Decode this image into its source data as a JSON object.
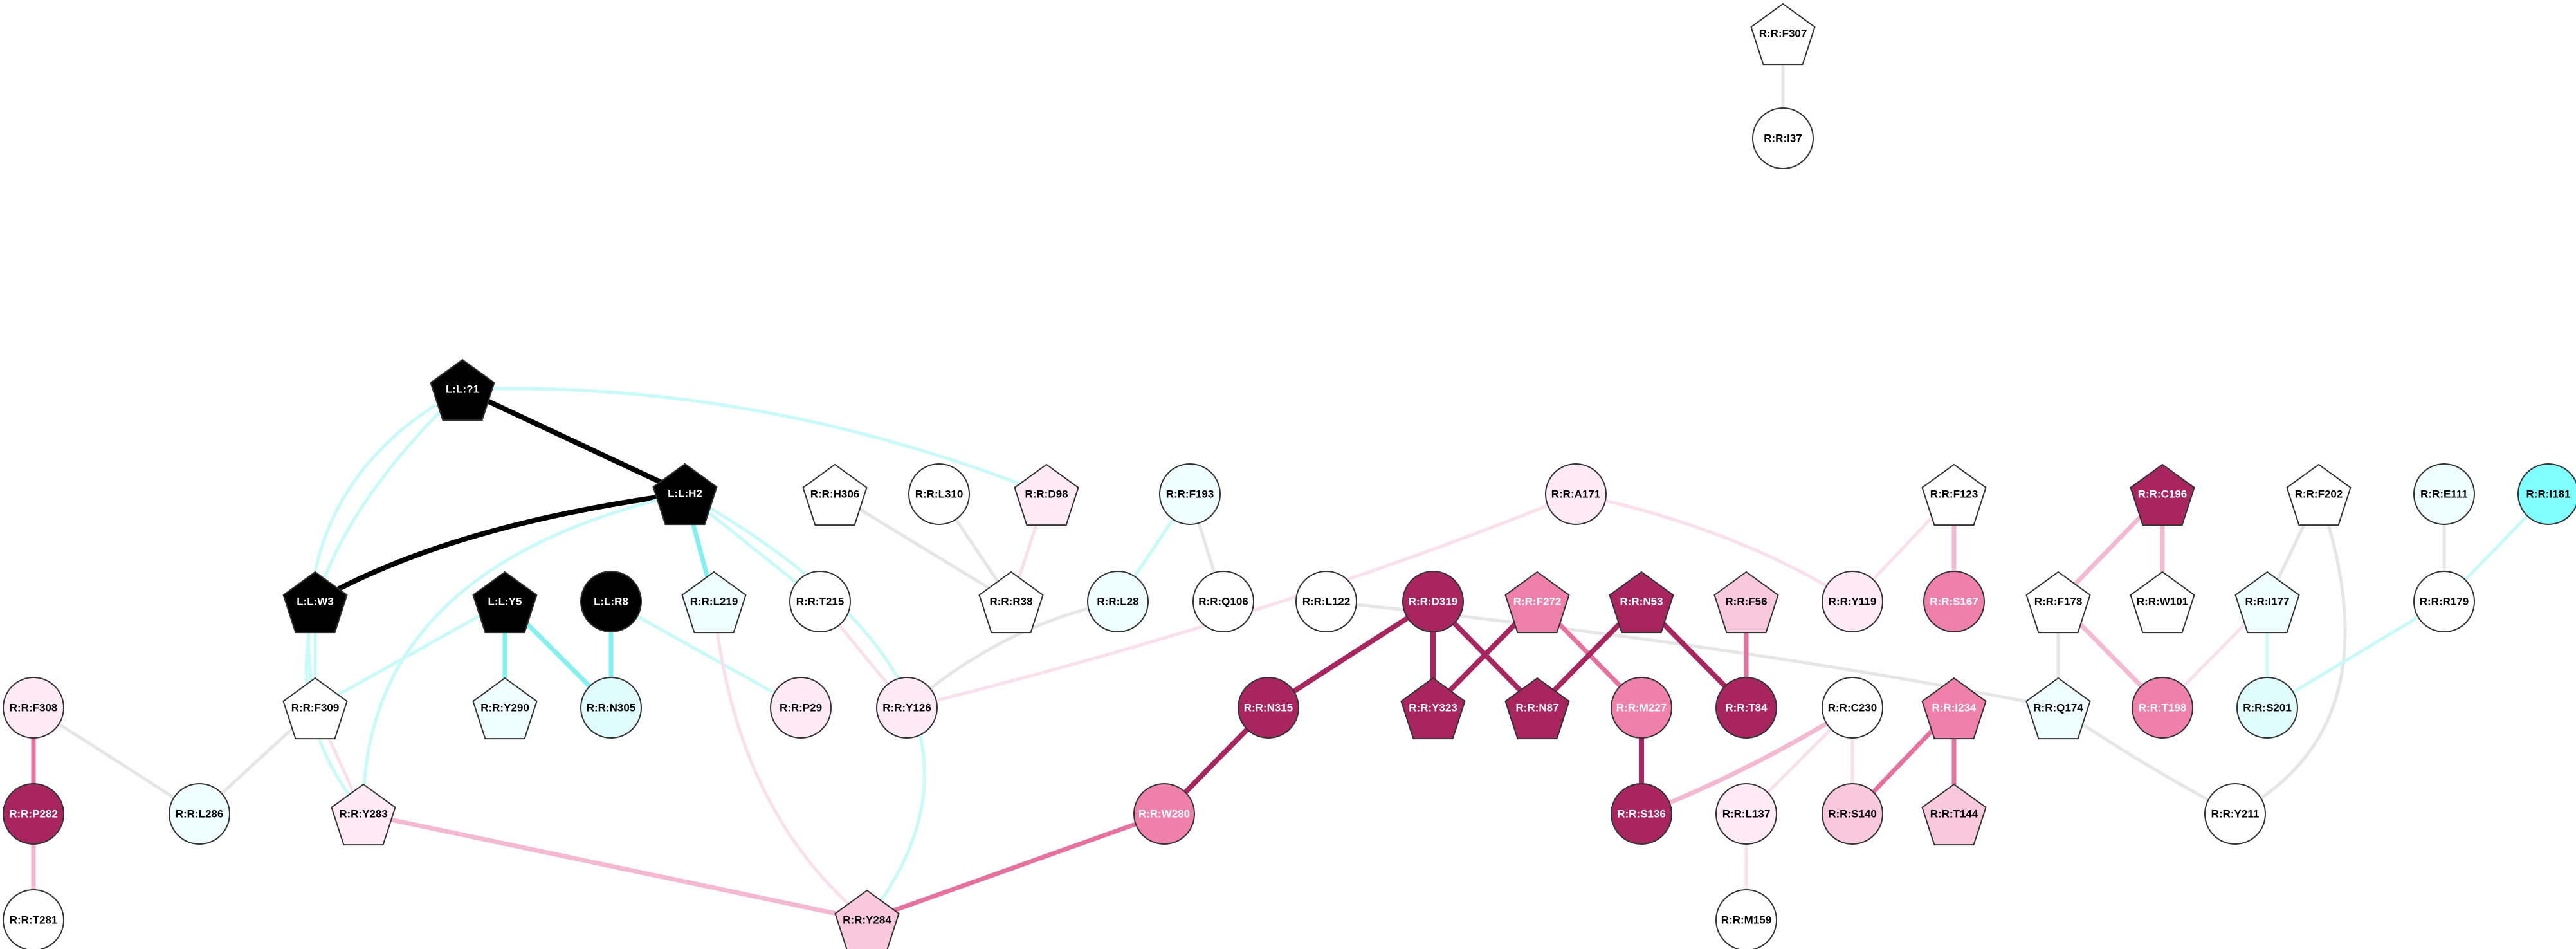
{
  "palette": {
    "ligand": "#000000",
    "white": "#ffffff",
    "lightest_cyan": "#eefdfd",
    "light_cyan": "#dffbfb",
    "bright_cyan": "#80ffff",
    "lightest_pink": "#fdeaf2",
    "light_pink": "#f8c8dd",
    "mid_pink": "#ef7fab",
    "dark_magenta": "#a8255f",
    "edge_grey": "#e6e6e6",
    "edge_cyan_pale": "#c8fafa",
    "edge_cyan": "#80f0f0",
    "edge_pink_pale": "#fae0ea",
    "edge_pink": "#f4b8d0",
    "edge_pink_mid": "#e8709e",
    "edge_magenta": "#a8255f",
    "edge_black": "#000000"
  },
  "network": {
    "nodes": [
      {
        "id": "L:L:?1",
        "shape": "pentagon",
        "color": "ligand",
        "text": "light"
      },
      {
        "id": "L:L:H2",
        "shape": "pentagon",
        "color": "ligand",
        "text": "light"
      },
      {
        "id": "L:L:W3",
        "shape": "pentagon",
        "color": "ligand",
        "text": "light"
      },
      {
        "id": "L:L:Y5",
        "shape": "pentagon",
        "color": "ligand",
        "text": "light"
      },
      {
        "id": "L:L:R8",
        "shape": "circle",
        "color": "ligand",
        "text": "light"
      },
      {
        "id": "R:R:F307",
        "shape": "pentagon",
        "color": "white"
      },
      {
        "id": "R:R:I37",
        "shape": "circle",
        "color": "white"
      },
      {
        "id": "R:R:H306",
        "shape": "pentagon",
        "color": "white"
      },
      {
        "id": "R:R:L310",
        "shape": "circle",
        "color": "white"
      },
      {
        "id": "R:R:D98",
        "shape": "pentagon",
        "color": "lightest_pink"
      },
      {
        "id": "R:R:F193",
        "shape": "circle",
        "color": "lightest_cyan"
      },
      {
        "id": "R:R:A171",
        "shape": "circle",
        "color": "lightest_pink"
      },
      {
        "id": "R:R:F123",
        "shape": "pentagon",
        "color": "white"
      },
      {
        "id": "R:R:C196",
        "shape": "pentagon",
        "color": "dark_magenta",
        "text": "light"
      },
      {
        "id": "R:R:F202",
        "shape": "pentagon",
        "color": "white"
      },
      {
        "id": "R:R:E111",
        "shape": "circle",
        "color": "lightest_cyan"
      },
      {
        "id": "R:R:I181",
        "shape": "circle",
        "color": "bright_cyan"
      },
      {
        "id": "R:R:L219",
        "shape": "pentagon",
        "color": "lightest_cyan"
      },
      {
        "id": "R:R:T215",
        "shape": "circle",
        "color": "white"
      },
      {
        "id": "R:R:R38",
        "shape": "pentagon",
        "color": "white"
      },
      {
        "id": "R:R:L28",
        "shape": "circle",
        "color": "lightest_cyan"
      },
      {
        "id": "R:R:Q106",
        "shape": "circle",
        "color": "white"
      },
      {
        "id": "R:R:L122",
        "shape": "circle",
        "color": "white"
      },
      {
        "id": "R:R:D319",
        "shape": "circle",
        "color": "dark_magenta",
        "text": "light"
      },
      {
        "id": "R:R:F272",
        "shape": "pentagon",
        "color": "mid_pink",
        "text": "light"
      },
      {
        "id": "R:R:N53",
        "shape": "pentagon",
        "color": "dark_magenta",
        "text": "light"
      },
      {
        "id": "R:R:F56",
        "shape": "pentagon",
        "color": "light_pink"
      },
      {
        "id": "R:R:Y119",
        "shape": "circle",
        "color": "lightest_pink"
      },
      {
        "id": "R:R:S167",
        "shape": "circle",
        "color": "mid_pink",
        "text": "light"
      },
      {
        "id": "R:R:F178",
        "shape": "pentagon",
        "color": "white"
      },
      {
        "id": "R:R:W101",
        "shape": "pentagon",
        "color": "white"
      },
      {
        "id": "R:R:I177",
        "shape": "pentagon",
        "color": "lightest_cyan"
      },
      {
        "id": "R:R:R179",
        "shape": "circle",
        "color": "white"
      },
      {
        "id": "R:R:F308",
        "shape": "circle",
        "color": "lightest_pink"
      },
      {
        "id": "R:R:F309",
        "shape": "pentagon",
        "color": "white"
      },
      {
        "id": "R:R:Y290",
        "shape": "pentagon",
        "color": "lightest_cyan"
      },
      {
        "id": "R:R:N305",
        "shape": "circle",
        "color": "light_cyan"
      },
      {
        "id": "R:R:P29",
        "shape": "circle",
        "color": "lightest_pink"
      },
      {
        "id": "R:R:Y126",
        "shape": "circle",
        "color": "lightest_pink"
      },
      {
        "id": "R:R:N315",
        "shape": "circle",
        "color": "dark_magenta",
        "text": "light"
      },
      {
        "id": "R:R:Y323",
        "shape": "pentagon",
        "color": "dark_magenta",
        "text": "light"
      },
      {
        "id": "R:R:N87",
        "shape": "pentagon",
        "color": "dark_magenta",
        "text": "light"
      },
      {
        "id": "R:R:M227",
        "shape": "circle",
        "color": "mid_pink",
        "text": "light"
      },
      {
        "id": "R:R:T84",
        "shape": "circle",
        "color": "dark_magenta",
        "text": "light"
      },
      {
        "id": "R:R:C230",
        "shape": "circle",
        "color": "white"
      },
      {
        "id": "R:R:I234",
        "shape": "pentagon",
        "color": "mid_pink",
        "text": "light"
      },
      {
        "id": "R:R:Q174",
        "shape": "pentagon",
        "color": "lightest_cyan"
      },
      {
        "id": "R:R:T198",
        "shape": "circle",
        "color": "mid_pink",
        "text": "light"
      },
      {
        "id": "R:R:S201",
        "shape": "circle",
        "color": "light_cyan"
      },
      {
        "id": "R:R:P282",
        "shape": "circle",
        "color": "dark_magenta",
        "text": "light"
      },
      {
        "id": "R:R:L286",
        "shape": "circle",
        "color": "lightest_cyan"
      },
      {
        "id": "R:R:Y283",
        "shape": "pentagon",
        "color": "lightest_pink"
      },
      {
        "id": "R:R:W280",
        "shape": "circle",
        "color": "mid_pink",
        "text": "light"
      },
      {
        "id": "R:R:S136",
        "shape": "circle",
        "color": "dark_magenta",
        "text": "light"
      },
      {
        "id": "R:R:L137",
        "shape": "circle",
        "color": "lightest_pink"
      },
      {
        "id": "R:R:S140",
        "shape": "circle",
        "color": "light_pink"
      },
      {
        "id": "R:R:T144",
        "shape": "pentagon",
        "color": "light_pink"
      },
      {
        "id": "R:R:Y211",
        "shape": "circle",
        "color": "white"
      },
      {
        "id": "R:R:T281",
        "shape": "circle",
        "color": "white"
      },
      {
        "id": "R:R:Y284",
        "shape": "pentagon",
        "color": "light_pink"
      },
      {
        "id": "R:R:M159",
        "shape": "circle",
        "color": "white"
      }
    ],
    "edges": [
      {
        "source": "R:R:F307",
        "target": "R:R:I37",
        "color": "edge_grey",
        "weight": "thin"
      },
      {
        "source": "L:L:?1",
        "target": "L:L:H2",
        "color": "edge_black",
        "weight": "heavy"
      },
      {
        "source": "L:L:H2",
        "target": "L:L:W3",
        "color": "edge_black",
        "weight": "heavy"
      },
      {
        "source": "L:L:?1",
        "target": "R:R:D98",
        "color": "edge_cyan_pale",
        "weight": "thin"
      },
      {
        "source": "L:L:?1",
        "target": "R:R:F309",
        "color": "edge_cyan_pale",
        "weight": "thin"
      },
      {
        "source": "L:L:?1",
        "target": "R:R:Y283",
        "color": "edge_cyan_pale",
        "weight": "thin"
      },
      {
        "source": "L:L:H2",
        "target": "R:R:L219",
        "color": "edge_cyan",
        "weight": "medium"
      },
      {
        "source": "L:L:H2",
        "target": "R:R:T215",
        "color": "edge_cyan_pale",
        "weight": "thin"
      },
      {
        "source": "L:L:H2",
        "target": "R:R:Y283",
        "color": "edge_cyan_pale",
        "weight": "thin"
      },
      {
        "source": "L:L:H2",
        "target": "R:R:Y284",
        "color": "edge_cyan_pale",
        "weight": "thin"
      },
      {
        "source": "L:L:W3",
        "target": "R:R:F309",
        "color": "edge_cyan_pale",
        "weight": "thin"
      },
      {
        "source": "L:L:Y5",
        "target": "R:R:Y290",
        "color": "edge_cyan",
        "weight": "medium"
      },
      {
        "source": "L:L:Y5",
        "target": "R:R:N305",
        "color": "edge_cyan",
        "weight": "medium"
      },
      {
        "source": "L:L:Y5",
        "target": "R:R:F309",
        "color": "edge_cyan_pale",
        "weight": "thin"
      },
      {
        "source": "L:L:R8",
        "target": "R:R:N305",
        "color": "edge_cyan",
        "weight": "medium"
      },
      {
        "source": "L:L:R8",
        "target": "R:R:P29",
        "color": "edge_cyan_pale",
        "weight": "thin"
      },
      {
        "source": "R:R:H306",
        "target": "R:R:R38",
        "color": "edge_grey",
        "weight": "thin"
      },
      {
        "source": "R:R:L310",
        "target": "R:R:R38",
        "color": "edge_grey",
        "weight": "thin"
      },
      {
        "source": "R:R:D98",
        "target": "R:R:R38",
        "color": "edge_pink_pale",
        "weight": "thin"
      },
      {
        "source": "R:R:F193",
        "target": "R:R:L28",
        "color": "edge_cyan_pale",
        "weight": "thin"
      },
      {
        "source": "R:R:F193",
        "target": "R:R:Q106",
        "color": "edge_grey",
        "weight": "thin"
      },
      {
        "source": "R:R:L28",
        "target": "R:R:Y126",
        "color": "edge_grey",
        "weight": "thin"
      },
      {
        "source": "R:R:T215",
        "target": "R:R:Y126",
        "color": "edge_pink_pale",
        "weight": "thin"
      },
      {
        "source": "R:R:L219",
        "target": "R:R:Y284",
        "color": "edge_pink_pale",
        "weight": "thin"
      },
      {
        "source": "R:R:A171",
        "target": "R:R:Y126",
        "color": "edge_pink_pale",
        "weight": "thin"
      },
      {
        "source": "R:R:A171",
        "target": "R:R:Y119",
        "color": "edge_pink_pale",
        "weight": "thin"
      },
      {
        "source": "R:R:L122",
        "target": "R:R:Q174",
        "color": "edge_grey",
        "weight": "thin"
      },
      {
        "source": "R:R:D319",
        "target": "R:R:N315",
        "color": "edge_magenta",
        "weight": "heavy"
      },
      {
        "source": "R:R:D319",
        "target": "R:R:Y323",
        "color": "edge_magenta",
        "weight": "heavy"
      },
      {
        "source": "R:R:D319",
        "target": "R:R:N87",
        "color": "edge_magenta",
        "weight": "heavy"
      },
      {
        "source": "R:R:F272",
        "target": "R:R:Y323",
        "color": "edge_magenta",
        "weight": "heavy"
      },
      {
        "source": "R:R:F272",
        "target": "R:R:M227",
        "color": "edge_pink_mid",
        "weight": "medium"
      },
      {
        "source": "R:R:N53",
        "target": "R:R:N87",
        "color": "edge_magenta",
        "weight": "heavy"
      },
      {
        "source": "R:R:N53",
        "target": "R:R:T84",
        "color": "edge_magenta",
        "weight": "heavy"
      },
      {
        "source": "R:R:F56",
        "target": "R:R:T84",
        "color": "edge_pink_mid",
        "weight": "medium"
      },
      {
        "source": "R:R:M227",
        "target": "R:R:S136",
        "color": "edge_magenta",
        "weight": "heavy"
      },
      {
        "source": "R:R:N315",
        "target": "R:R:W280",
        "color": "edge_magenta",
        "weight": "heavy"
      },
      {
        "source": "R:R:W280",
        "target": "R:R:Y284",
        "color": "edge_pink_mid",
        "weight": "medium"
      },
      {
        "source": "R:R:Y283",
        "target": "R:R:Y284",
        "color": "edge_pink",
        "weight": "medium"
      },
      {
        "source": "R:R:F123",
        "target": "R:R:Y119",
        "color": "edge_pink_pale",
        "weight": "thin"
      },
      {
        "source": "R:R:F123",
        "target": "R:R:S167",
        "color": "edge_pink",
        "weight": "medium"
      },
      {
        "source": "R:R:C230",
        "target": "R:R:S136",
        "color": "edge_pink",
        "weight": "medium"
      },
      {
        "source": "R:R:C230",
        "target": "R:R:L137",
        "color": "edge_pink_pale",
        "weight": "thin"
      },
      {
        "source": "R:R:C230",
        "target": "R:R:S140",
        "color": "edge_pink_pale",
        "weight": "thin"
      },
      {
        "source": "R:R:I234",
        "target": "R:R:S140",
        "color": "edge_pink_mid",
        "weight": "medium"
      },
      {
        "source": "R:R:I234",
        "target": "R:R:T144",
        "color": "edge_pink_mid",
        "weight": "medium"
      },
      {
        "source": "R:R:L137",
        "target": "R:R:M159",
        "color": "edge_pink_pale",
        "weight": "thin"
      },
      {
        "source": "R:R:C196",
        "target": "R:R:F178",
        "color": "edge_pink",
        "weight": "medium"
      },
      {
        "source": "R:R:C196",
        "target": "R:R:W101",
        "color": "edge_pink",
        "weight": "medium"
      },
      {
        "source": "R:R:F178",
        "target": "R:R:Q174",
        "color": "edge_grey",
        "weight": "thin"
      },
      {
        "source": "R:R:F178",
        "target": "R:R:T198",
        "color": "edge_pink",
        "weight": "medium"
      },
      {
        "source": "R:R:Q174",
        "target": "R:R:Y211",
        "color": "edge_grey",
        "weight": "thin"
      },
      {
        "source": "R:R:F202",
        "target": "R:R:I177",
        "color": "edge_grey",
        "weight": "thin"
      },
      {
        "source": "R:R:F202",
        "target": "R:R:Y211",
        "color": "edge_grey",
        "weight": "thin"
      },
      {
        "source": "R:R:I177",
        "target": "R:R:S201",
        "color": "edge_cyan_pale",
        "weight": "thin"
      },
      {
        "source": "R:R:I177",
        "target": "R:R:T198",
        "color": "edge_pink_pale",
        "weight": "thin"
      },
      {
        "source": "R:R:E111",
        "target": "R:R:R179",
        "color": "edge_grey",
        "weight": "thin"
      },
      {
        "source": "R:R:I181",
        "target": "R:R:R179",
        "color": "edge_cyan_pale",
        "weight": "thin"
      },
      {
        "source": "R:R:R179",
        "target": "R:R:S201",
        "color": "edge_cyan_pale",
        "weight": "thin"
      },
      {
        "source": "R:R:F308",
        "target": "R:R:P282",
        "color": "edge_pink_mid",
        "weight": "medium"
      },
      {
        "source": "R:R:F308",
        "target": "R:R:L286",
        "color": "edge_grey",
        "weight": "thin"
      },
      {
        "source": "R:R:P282",
        "target": "R:R:T281",
        "color": "edge_pink",
        "weight": "medium"
      },
      {
        "source": "R:R:F309",
        "target": "R:R:L286",
        "color": "edge_grey",
        "weight": "thin"
      },
      {
        "source": "R:R:F309",
        "target": "R:R:Y283",
        "color": "edge_pink_pale",
        "weight": "thin"
      }
    ]
  }
}
